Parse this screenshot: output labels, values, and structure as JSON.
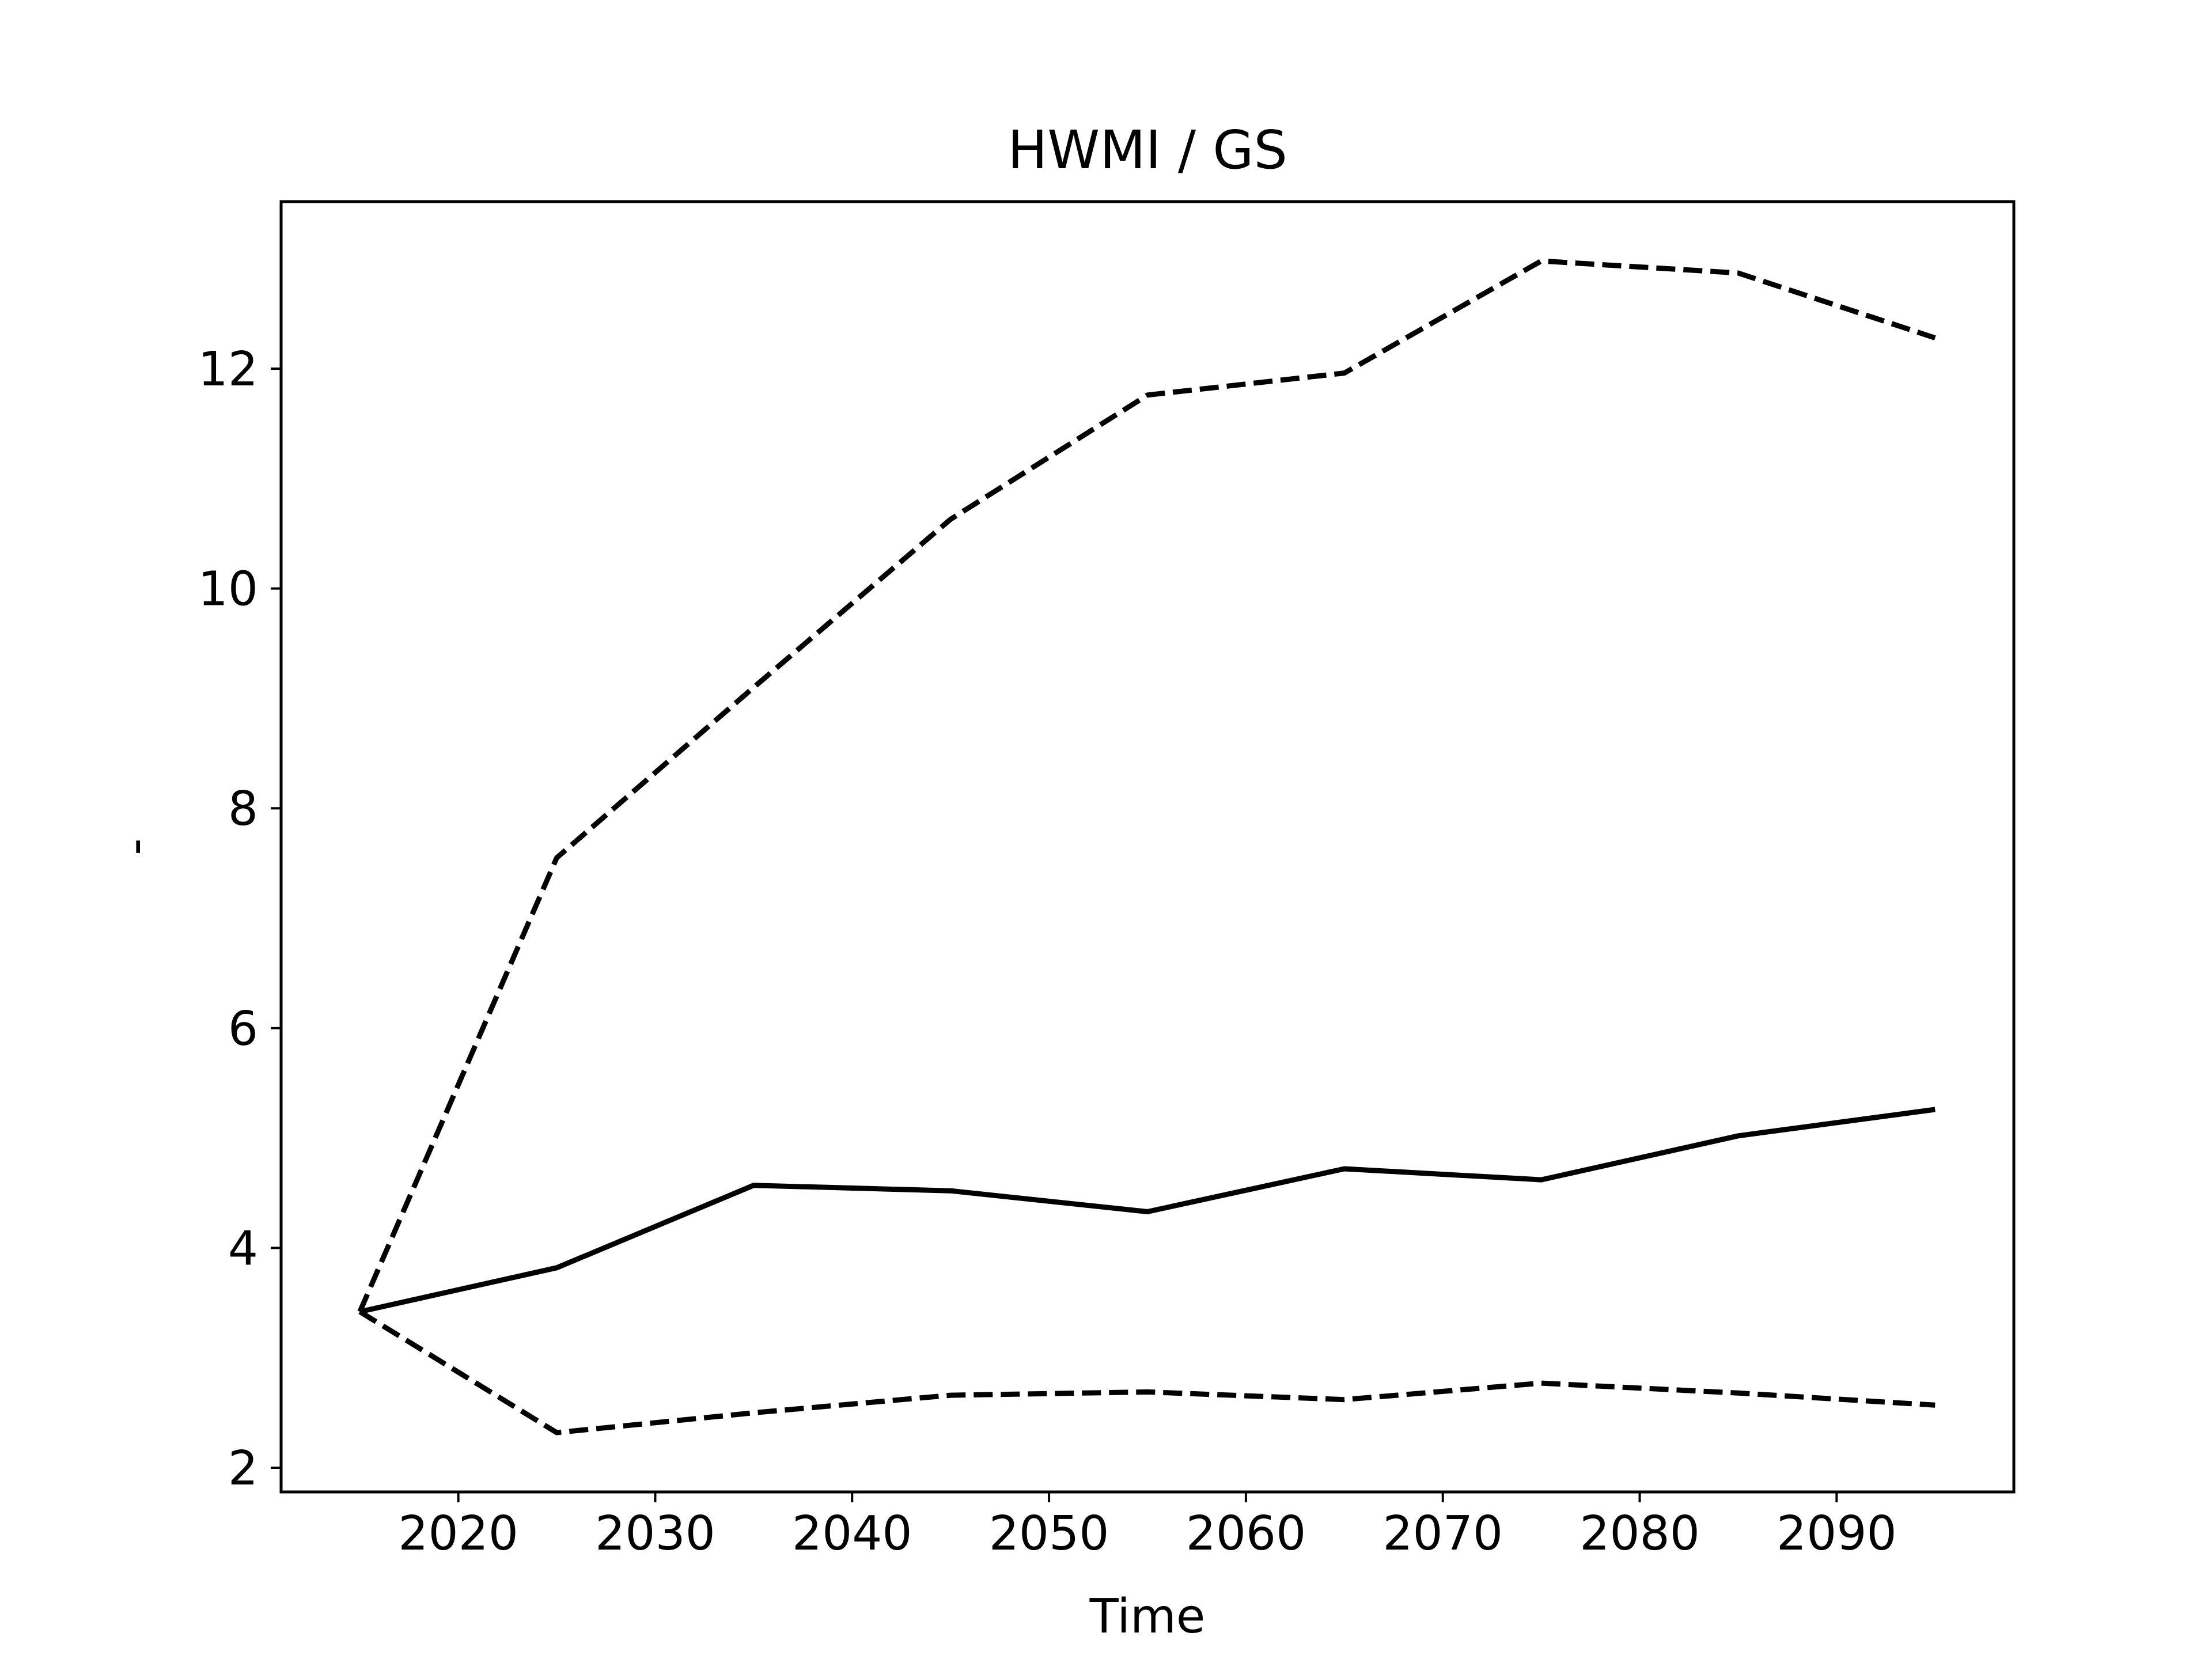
{
  "chart_data": {
    "type": "line",
    "title": "HWMI / GS",
    "xlabel": "Time",
    "ylabel": "-",
    "x": [
      2015,
      2025,
      2035,
      2045,
      2055,
      2065,
      2075,
      2085,
      2095
    ],
    "xlim": [
      2011,
      2099
    ],
    "ylim": [
      1.78,
      13.52
    ],
    "xticks": [
      2020,
      2030,
      2040,
      2050,
      2060,
      2070,
      2080,
      2090
    ],
    "yticks": [
      2,
      4,
      6,
      8,
      10,
      12
    ],
    "grid": false,
    "legend": "none",
    "series": [
      {
        "style": "solid",
        "color": "#000000",
        "values": [
          3.42,
          3.82,
          4.57,
          4.52,
          4.33,
          4.72,
          4.62,
          5.02,
          5.26
        ]
      },
      {
        "style": "dashed",
        "color": "#000000",
        "values": [
          3.42,
          7.55,
          9.1,
          10.63,
          11.76,
          11.96,
          12.98,
          12.87,
          12.28
        ]
      },
      {
        "style": "dashed",
        "color": "#000000",
        "values": [
          3.42,
          2.32,
          2.5,
          2.66,
          2.69,
          2.62,
          2.77,
          2.68,
          2.57
        ]
      }
    ]
  }
}
